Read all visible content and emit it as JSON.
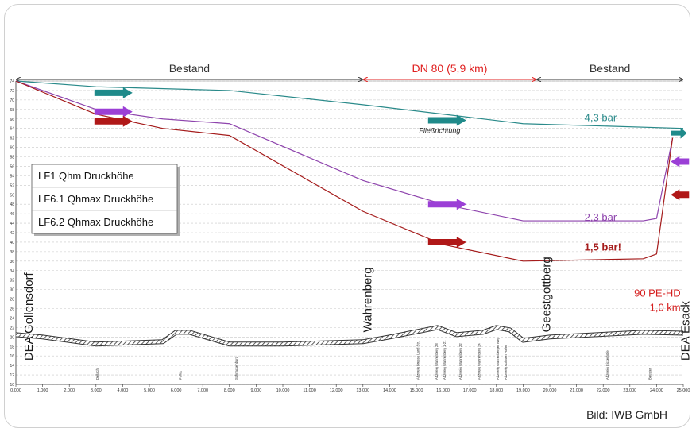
{
  "chart_data": {
    "type": "line",
    "xlim": [
      0,
      25
    ],
    "ylim": [
      10,
      74
    ],
    "x_ticks": [
      "0.000",
      "1.000",
      "2.000",
      "3.000",
      "4.000",
      "5.000",
      "6.000",
      "7.000",
      "8.000",
      "9.000",
      "10.000",
      "11.000",
      "12.000",
      "13.000",
      "14.000",
      "15.000",
      "16.000",
      "17.000",
      "18.000",
      "19.000",
      "20.000",
      "21.000",
      "22.000",
      "23.000",
      "24.000",
      "25.000"
    ],
    "y_ticks": [
      "74",
      "72",
      "70",
      "68",
      "66",
      "64",
      "62",
      "60",
      "58",
      "56",
      "54",
      "52",
      "50",
      "48",
      "46",
      "44",
      "42",
      "40",
      "38",
      "36",
      "34",
      "32",
      "30",
      "28",
      "26",
      "24",
      "22",
      "20",
      "18",
      "16",
      "14",
      "12",
      "10"
    ],
    "grid": "horizontal-dashed",
    "legend_position": "left",
    "series": [
      {
        "name": "LF1 Qhm Druckhöhe",
        "color": "#2a8a8a",
        "x": [
          0,
          3,
          8,
          13,
          16,
          19,
          25
        ],
        "y": [
          74,
          72.8,
          72,
          69,
          67,
          65,
          64
        ]
      },
      {
        "name": "LF6.1 Qhmax Druckhöhe",
        "color": "#8e44ad",
        "x": [
          0,
          3,
          5.5,
          8,
          13,
          16,
          19,
          23.5,
          24,
          24.6
        ],
        "y": [
          74,
          68,
          66,
          65,
          53,
          48,
          44.5,
          44.5,
          45,
          62
        ]
      },
      {
        "name": "LF6.2 Qhmax Druckhöhe",
        "color": "#a51c1c",
        "x": [
          0,
          3,
          5.5,
          8,
          13,
          16,
          19,
          23.5,
          24,
          24.6
        ],
        "y": [
          74,
          67,
          64,
          62.5,
          46.5,
          39.5,
          36,
          36.5,
          37.5,
          62
        ]
      },
      {
        "name": "",
        "color": "#555555",
        "hatched": true,
        "x": [
          0,
          1,
          3,
          5.5,
          6,
          6.5,
          8,
          10,
          13,
          14,
          15.8,
          16.5,
          17.5,
          18,
          18.5,
          19,
          20,
          23.5,
          25
        ],
        "y": [
          20.5,
          20,
          18.5,
          19,
          21,
          21,
          18.5,
          18.5,
          19,
          20,
          22,
          20.5,
          21,
          22,
          21.5,
          19.3,
          20,
          21,
          20.8
        ]
      }
    ],
    "segments": [
      {
        "label": "Bestand",
        "from": 0,
        "to": 13,
        "color": "#333333"
      },
      {
        "label": "DN 80 (5,9 km)",
        "from": 13,
        "to": 19.5,
        "color": "#e02020"
      },
      {
        "label": "Bestand",
        "from": 19.5,
        "to": 25,
        "color": "#333333"
      }
    ],
    "annotations": [
      {
        "text": "4,3 bar",
        "x": 21.3,
        "y": 65.5,
        "color": "#2a8a8a",
        "bold": false
      },
      {
        "text": "2,3 bar",
        "x": 21.3,
        "y": 44.5,
        "color": "#8e44ad",
        "bold": false
      },
      {
        "text": "1,5 bar!",
        "x": 21.3,
        "y": 38.2,
        "color": "#a51c1c",
        "bold": true
      },
      {
        "text": "90 PE-HD",
        "x": 24.9,
        "y": 28.5,
        "color": "#d62020",
        "bold": false
      },
      {
        "text": "1,0 km",
        "x": 24.9,
        "y": 25.5,
        "color": "#d62020",
        "bold": false
      }
    ],
    "flow_label": {
      "text": "Fließrichtung",
      "x": 15.1,
      "y": 63
    },
    "arrows": [
      {
        "x": 3,
        "y": 71.5,
        "color": "#1f8a8a"
      },
      {
        "x": 3,
        "y": 67.5,
        "color": "#9b3fd6"
      },
      {
        "x": 3,
        "y": 65.5,
        "color": "#b01818"
      },
      {
        "x": 15.5,
        "y": 65.7,
        "color": "#1f8a8a"
      },
      {
        "x": 15.5,
        "y": 48,
        "color": "#9b3fd6"
      },
      {
        "x": 15.5,
        "y": 40,
        "color": "#b01818"
      },
      {
        "x": 24.6,
        "y": 63,
        "color": "#1f8a8a"
      },
      {
        "x": 24.8,
        "y": 57,
        "color": "#9b3fd6",
        "dir": "left"
      },
      {
        "x": 24.8,
        "y": 50,
        "color": "#b01818",
        "dir": "left"
      }
    ],
    "place_labels": [
      {
        "text": "DEA Gollensdorf",
        "x": 0.5,
        "y": 15
      },
      {
        "text": "Wahrenberg",
        "x": 13.2,
        "y": 21
      },
      {
        "text": "Geestgottberg",
        "x": 19.9,
        "y": 21
      },
      {
        "text": "DEA Esack",
        "x": 25.1,
        "y": 15
      }
    ],
    "small_labels": [
      {
        "text": "Dellach",
        "x": 3.1
      },
      {
        "text": "Pollitz",
        "x": 6.2
      },
      {
        "text": "Schnackenburg",
        "x": 8.3
      },
      {
        "text": "Abzweig Bresse Land Str.",
        "x": 15.1
      },
      {
        "text": "Abzweig Wahrenberg 28",
        "x": 15.8
      },
      {
        "text": "Abzweig Wahrenberg 1-21",
        "x": 16.1
      },
      {
        "text": "Abzweig Wahrenberg 22",
        "x": 16.7
      },
      {
        "text": "Abzweig Wahrenberg 24",
        "x": 17.4
      },
      {
        "text": "Abzweig Wahrenberger Weg",
        "x": 18.1
      },
      {
        "text": "Abzweig Aulosen Hafer",
        "x": 18.4
      },
      {
        "text": "Abzweig Eickerhöfe",
        "x": 22.2
      },
      {
        "text": "Beuster",
        "x": 23.8
      }
    ]
  },
  "credit": "Bild: IWB GmbH"
}
